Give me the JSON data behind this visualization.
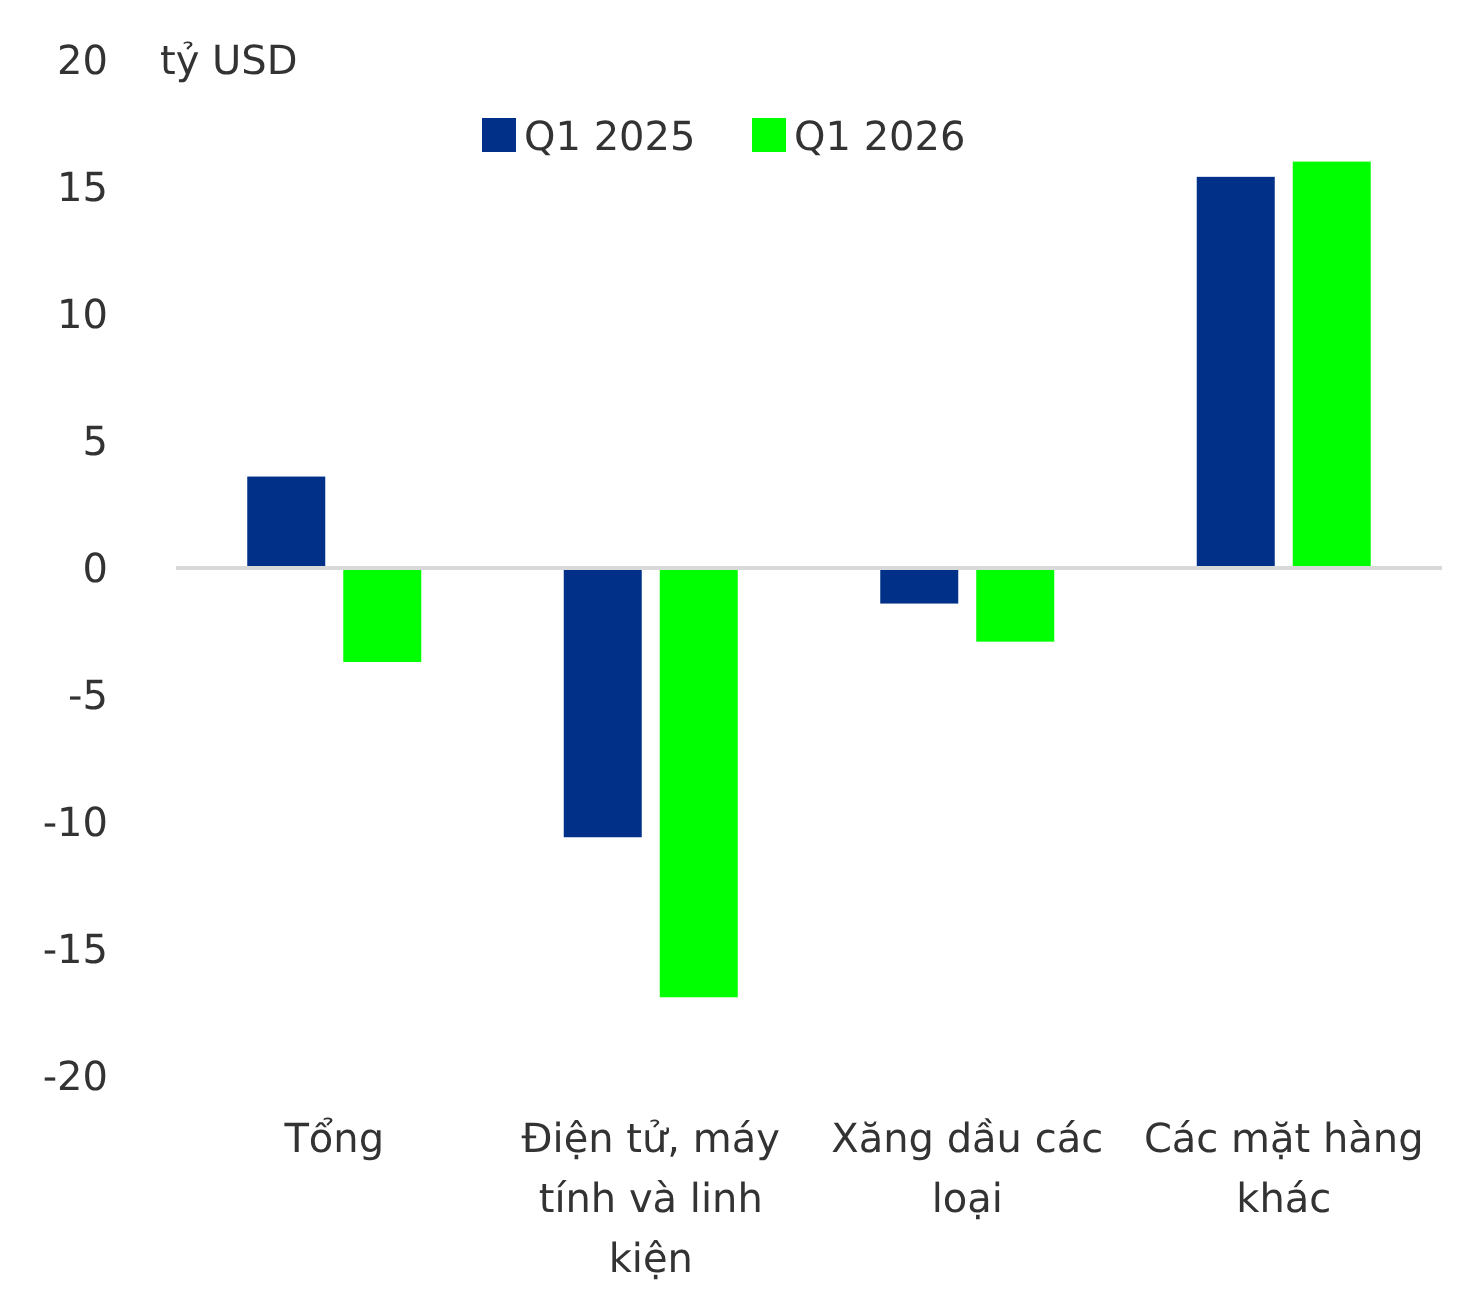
{
  "chart_data": {
    "type": "bar",
    "ylabel": "tỷ USD",
    "categories": [
      "Tổng",
      "Điện tử, máy tính và linh kiện",
      "Xăng dầu các loại",
      "Các mặt hàng khác"
    ],
    "series": [
      {
        "name": "Q1 2025",
        "color": "#003087",
        "values": [
          3.6,
          -10.6,
          -1.4,
          15.4
        ]
      },
      {
        "name": "Q1 2026",
        "color": "#00ff00",
        "values": [
          -3.7,
          -16.9,
          -2.9,
          16.0
        ]
      }
    ],
    "ylim": [
      -20,
      20
    ],
    "yticks": [
      -20,
      -15,
      -10,
      -5,
      0,
      5,
      10,
      15,
      20
    ],
    "ref_lines": [
      {
        "axis": "y",
        "value": 0,
        "color": "#d9d9d9"
      }
    ],
    "legend": "top"
  }
}
